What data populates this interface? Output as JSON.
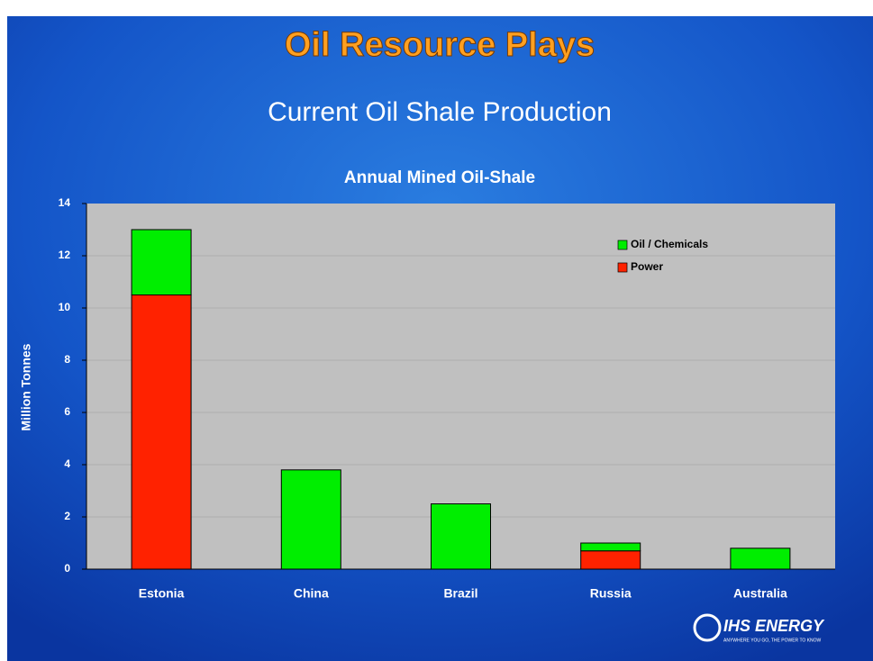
{
  "slide": {
    "title": "Oil Resource Plays",
    "subtitle": "Current Oil Shale Production"
  },
  "chart_data": {
    "type": "stacked_bar",
    "title": "Annual Mined Oil-Shale",
    "y_label": "Million Tonnes",
    "categories": [
      "Estonia",
      "China",
      "Brazil",
      "Russia",
      "Australia"
    ],
    "series": [
      {
        "name": "Oil / Chemicals",
        "color": "#00ee00",
        "values": [
          2.5,
          3.8,
          2.5,
          0.3,
          0.8
        ]
      },
      {
        "name": "Power",
        "color": "#ff2200",
        "values": [
          10.5,
          0,
          0,
          0.7,
          0
        ]
      }
    ],
    "ylim": [
      0,
      14
    ],
    "yticks": [
      0,
      2,
      4,
      6,
      8,
      10,
      12,
      14
    ],
    "grid": true,
    "legend": "upper right"
  },
  "logo": {
    "name": "IHS ENERGY",
    "tagline": "ANYWHERE YOU GO, THE POWER TO KNOW"
  }
}
